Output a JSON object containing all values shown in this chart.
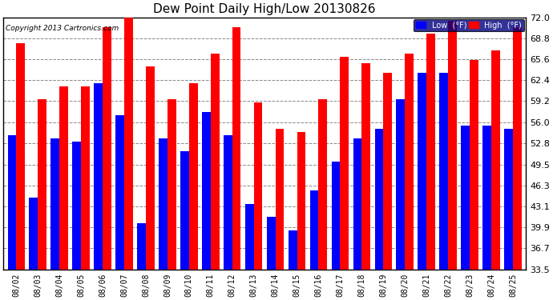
{
  "title": "Dew Point Daily High/Low 20130826",
  "copyright": "Copyright 2013 Cartronics.com",
  "dates": [
    "08/02",
    "08/03",
    "08/04",
    "08/05",
    "08/06",
    "08/07",
    "08/08",
    "08/09",
    "08/10",
    "08/11",
    "08/12",
    "08/13",
    "08/14",
    "08/15",
    "08/16",
    "08/17",
    "08/18",
    "08/19",
    "08/20",
    "08/21",
    "08/22",
    "08/23",
    "08/24",
    "08/25"
  ],
  "high": [
    68.0,
    59.5,
    61.5,
    61.5,
    70.5,
    72.5,
    64.5,
    59.5,
    62.0,
    66.5,
    70.5,
    59.0,
    55.0,
    54.5,
    59.5,
    66.0,
    65.0,
    63.5,
    66.5,
    69.5,
    71.5,
    65.5,
    67.0,
    70.5
  ],
  "low": [
    54.0,
    44.5,
    53.5,
    53.0,
    62.0,
    57.0,
    40.5,
    53.5,
    51.5,
    57.5,
    54.0,
    43.5,
    41.5,
    39.5,
    45.5,
    50.0,
    53.5,
    55.0,
    59.5,
    63.5,
    63.5,
    55.5,
    55.5,
    55.0
  ],
  "ylim": [
    33.5,
    72.0
  ],
  "yticks": [
    33.5,
    36.7,
    39.9,
    43.1,
    46.3,
    49.5,
    52.8,
    56.0,
    59.2,
    62.4,
    65.6,
    68.8,
    72.0
  ],
  "high_color": "#ff0000",
  "low_color": "#0000ff",
  "bg_color": "#ffffff",
  "grid_color": "#888888",
  "bar_width": 0.4,
  "title_fontsize": 11,
  "legend_high_label": "High  (°F)",
  "legend_low_label": "Low  (°F)",
  "frame_color": "#000000",
  "yticklabel_fontsize": 8,
  "xticklabel_fontsize": 7
}
